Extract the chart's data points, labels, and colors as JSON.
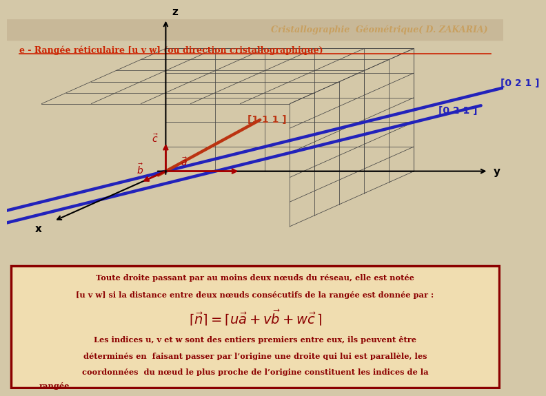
{
  "bg_color": "#d4c8a8",
  "header_bg": "#c8b898",
  "title_text": "Cristallographie  Géométrique( D. ZAKARIA)",
  "title_color": "#c8a060",
  "subtitle_text": "e - Rangée réticulaire [u v w] (ou direction cristallographique)",
  "subtitle_color": "#cc2200",
  "grid_color": "#444444",
  "axis_color": "#000000",
  "blue_line_color": "#2222bb",
  "orange_line_color": "#bb3311",
  "red_arrow_color": "#aa0000",
  "label_111": "[1 1 1 ]",
  "label_021a": "[0 2 1 ]",
  "label_021b": "[0 2 1 ]",
  "box_border_color": "#8b0000",
  "box_bg_color": "#f0ddb0",
  "text_color": "#8b0000",
  "t1": "Toute droite passant par au moins deux nœuds du réseau, elle est notée",
  "t2": "[u v w] si la distance entre deux nœuds consécutifs de la rangée est donnée par :",
  "t4": "Les indices u, v et w sont des entiers premiers entre eux, ils peuvent être",
  "t5": "déterminés en  faisant passer par l’origine une droite qui lui est parallèle, les",
  "t6": "coordonnées  du nœud le plus proche de l’origine constituent les indices de la",
  "t7": "rangée"
}
